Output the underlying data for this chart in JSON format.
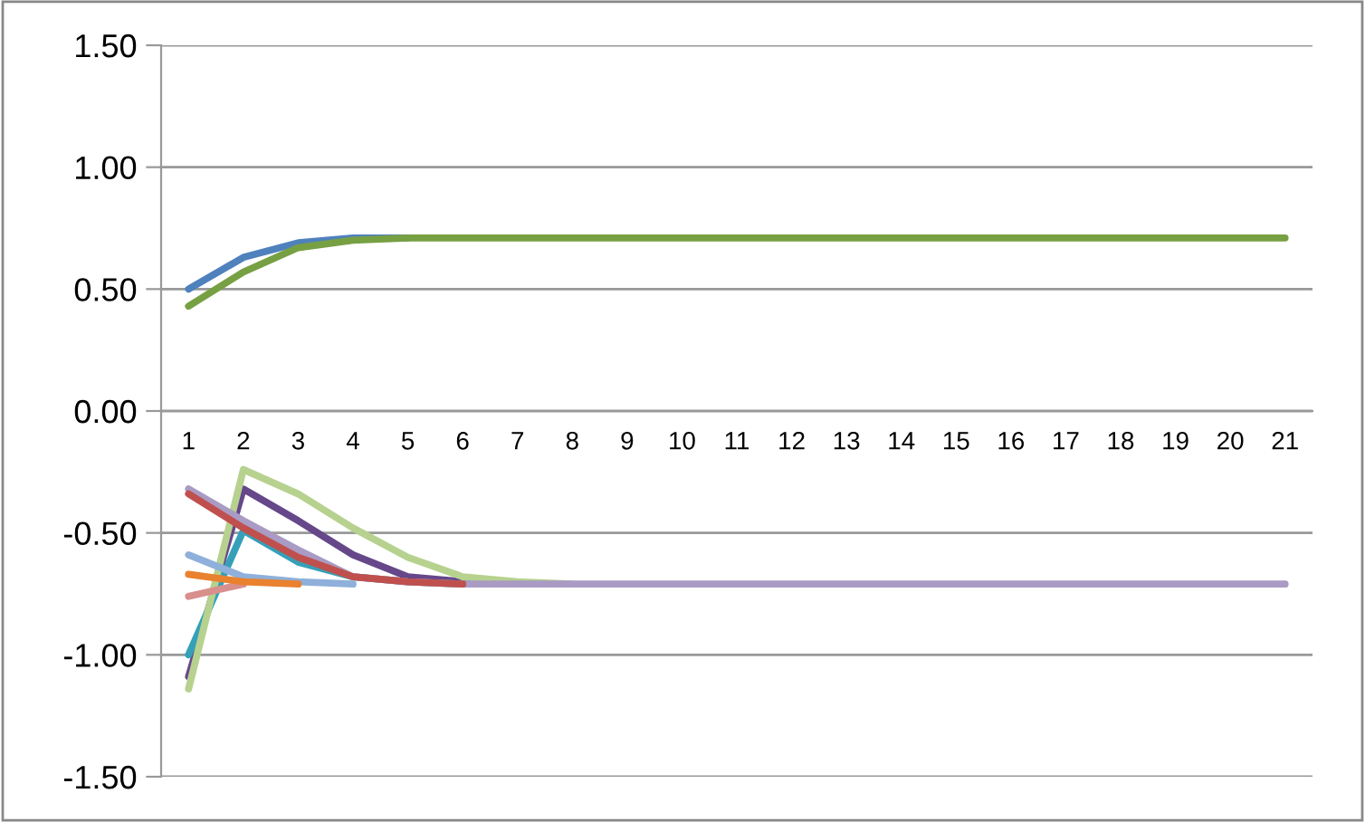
{
  "chart_data": {
    "type": "line",
    "categories": [
      "1",
      "2",
      "3",
      "4",
      "5",
      "6",
      "7",
      "8",
      "9",
      "10",
      "11",
      "12",
      "13",
      "14",
      "15",
      "16",
      "17",
      "18",
      "19",
      "20",
      "21"
    ],
    "series": [
      {
        "color": "#4f81bd",
        "values": [
          0.5,
          0.63,
          0.69,
          0.71,
          0.71,
          null,
          null,
          null,
          null,
          null,
          null,
          null,
          null,
          null,
          null,
          null,
          null,
          null,
          null,
          null,
          null
        ]
      },
      {
        "color": "#77a043",
        "values": [
          0.43,
          0.57,
          0.67,
          0.7,
          0.71,
          0.71,
          0.71,
          0.71,
          0.71,
          0.71,
          0.71,
          0.71,
          0.71,
          0.71,
          0.71,
          0.71,
          0.71,
          0.71,
          0.71,
          0.71,
          0.71
        ]
      },
      {
        "color": "#65478a",
        "values": [
          -1.09,
          -0.32,
          -0.45,
          -0.59,
          -0.68,
          -0.7,
          -0.71,
          null,
          null,
          null,
          null,
          null,
          null,
          null,
          null,
          null,
          null,
          null,
          null,
          null,
          null
        ]
      },
      {
        "color": "#35a0b8",
        "values": [
          -1.0,
          -0.49,
          -0.62,
          -0.68,
          -0.7,
          -0.71,
          null,
          null,
          null,
          null,
          null,
          null,
          null,
          null,
          null,
          null,
          null,
          null,
          null,
          null,
          null
        ]
      },
      {
        "color": "#b7d18f",
        "values": [
          -1.14,
          -0.24,
          -0.34,
          -0.48,
          -0.6,
          -0.68,
          -0.7,
          -0.71,
          null,
          null,
          null,
          null,
          null,
          null,
          null,
          null,
          null,
          null,
          null,
          null,
          null
        ]
      },
      {
        "color": "#a99bc4",
        "values": [
          -0.32,
          -0.45,
          -0.57,
          -0.68,
          -0.7,
          -0.71,
          -0.71,
          -0.71,
          -0.71,
          -0.71,
          -0.71,
          -0.71,
          -0.71,
          -0.71,
          -0.71,
          -0.71,
          -0.71,
          -0.71,
          -0.71,
          -0.71,
          -0.71
        ]
      },
      {
        "color": "#8eb0da",
        "values": [
          -0.59,
          -0.68,
          -0.7,
          -0.71,
          null,
          null,
          null,
          null,
          null,
          null,
          null,
          null,
          null,
          null,
          null,
          null,
          null,
          null,
          null,
          null,
          null
        ]
      },
      {
        "color": "#d98f8c",
        "values": [
          -0.76,
          -0.71,
          null,
          null,
          null,
          null,
          null,
          null,
          null,
          null,
          null,
          null,
          null,
          null,
          null,
          null,
          null,
          null,
          null,
          null,
          null
        ]
      },
      {
        "color": "#e9812f",
        "values": [
          -0.67,
          -0.7,
          -0.71,
          null,
          null,
          null,
          null,
          null,
          null,
          null,
          null,
          null,
          null,
          null,
          null,
          null,
          null,
          null,
          null,
          null,
          null
        ]
      },
      {
        "color": "#c0504d",
        "values": [
          -0.34,
          -0.48,
          -0.6,
          -0.68,
          -0.7,
          -0.71,
          null,
          null,
          null,
          null,
          null,
          null,
          null,
          null,
          null,
          null,
          null,
          null,
          null,
          null,
          null
        ]
      }
    ],
    "ylim": [
      -1.5,
      1.5
    ],
    "yticks": [
      {
        "value": -1.5,
        "label": "-1.50"
      },
      {
        "value": -1.0,
        "label": "-1.00"
      },
      {
        "value": -0.5,
        "label": "-0.50"
      },
      {
        "value": 0,
        "label": "0.00"
      },
      {
        "value": 0.5,
        "label": "0.50"
      },
      {
        "value": 1.0,
        "label": "1.00"
      },
      {
        "value": 1.5,
        "label": "1.50"
      }
    ],
    "grid": "y",
    "line_style": "solid",
    "marker": "none"
  }
}
